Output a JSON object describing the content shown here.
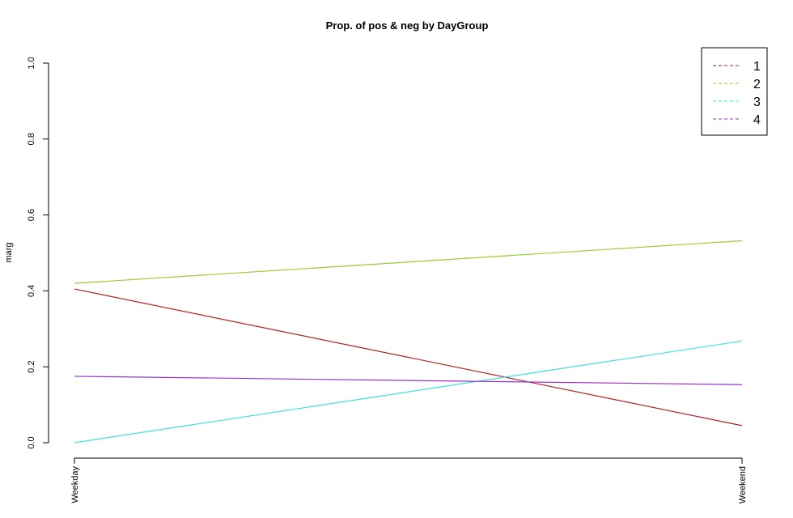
{
  "chart_data": {
    "type": "line",
    "title": "Prop. of pos & neg by DayGroup",
    "xlabel": "",
    "ylabel": "marg",
    "categories": [
      "Weekday",
      "Weekend"
    ],
    "ylim": [
      0,
      1
    ],
    "yticks": [
      "0.0",
      "0.2",
      "0.4",
      "0.6",
      "0.8",
      "1.0"
    ],
    "yticks_values": [
      0,
      0.2,
      0.4,
      0.6,
      0.8,
      1.0
    ],
    "grid": false,
    "legend_position": "top-right",
    "series": [
      {
        "name": "1",
        "color": "#b22222",
        "values": [
          0.405,
          0.045
        ]
      },
      {
        "name": "2",
        "color": "#9acd32",
        "values": [
          0.42,
          0.532
        ]
      },
      {
        "name": "3",
        "color": "#40e0e0",
        "values": [
          0.0,
          0.268
        ]
      },
      {
        "name": "4",
        "color": "#9932cc",
        "values": [
          0.175,
          0.153
        ]
      }
    ]
  }
}
